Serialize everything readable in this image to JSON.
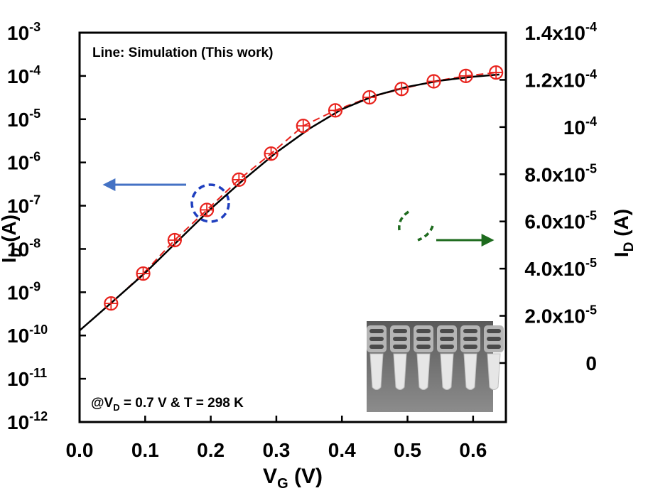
{
  "chart_data": {
    "type": "line",
    "title": "",
    "annotation_top": "Line: Simulation (This work)",
    "condition": {
      "prefix": "@V",
      "sub": "D",
      "suffix": " = 0.7 V & T = 298 K"
    },
    "xlabel": {
      "main": "V",
      "sub": "G",
      "unit": " (V)"
    },
    "ylabel_left": {
      "main": "I",
      "sub": "D",
      "unit": " (A)"
    },
    "ylabel_right": {
      "main": "I",
      "sub": "D",
      "unit": " (A)"
    },
    "xlim": [
      0.0,
      0.65
    ],
    "ylim_left_log10": [
      -12,
      -3
    ],
    "ylim_right": [
      -2.5e-05,
      0.00014
    ],
    "y_scale_left": "log",
    "y_scale_right": "linear",
    "grid": false,
    "x_ticks": [
      "0.0",
      "0.1",
      "0.2",
      "0.3",
      "0.4",
      "0.5",
      "0.6"
    ],
    "left_ticks": [
      {
        "base": "10",
        "exp": "-3"
      },
      {
        "base": "10",
        "exp": "-4"
      },
      {
        "base": "10",
        "exp": "-5"
      },
      {
        "base": "10",
        "exp": "-6"
      },
      {
        "base": "10",
        "exp": "-7"
      },
      {
        "base": "10",
        "exp": "-8"
      },
      {
        "base": "10",
        "exp": "-9"
      },
      {
        "base": "10",
        "exp": "-10"
      },
      {
        "base": "10",
        "exp": "-11"
      },
      {
        "base": "10",
        "exp": "-12"
      }
    ],
    "right_ticks": [
      {
        "text": "1.4x10",
        "exp": "-4"
      },
      {
        "text": "1.2x10",
        "exp": "-4"
      },
      {
        "text": "10",
        "exp": "-4"
      },
      {
        "text": "8.0x10",
        "exp": "-5"
      },
      {
        "text": "6.0x10",
        "exp": "-5"
      },
      {
        "text": "4.0x10",
        "exp": "-5"
      },
      {
        "text": "2.0x10",
        "exp": "-5"
      },
      {
        "text": "0",
        "exp": ""
      }
    ],
    "series": [
      {
        "role": "simulation",
        "axis": "left",
        "style": "solid",
        "color": "#000000",
        "x": [
          0.0,
          0.05,
          0.1,
          0.15,
          0.2,
          0.25,
          0.3,
          0.35,
          0.4,
          0.45,
          0.5,
          0.55,
          0.6,
          0.64
        ],
        "y": [
          1.3e-10,
          6e-10,
          2.8e-09,
          1.55e-08,
          8.5e-08,
          4e-07,
          1.7e-06,
          6e-06,
          1.7e-05,
          3.5e-05,
          5.6e-05,
          7.8e-05,
          9.6e-05,
          0.000108
        ]
      },
      {
        "role": "measurement",
        "axis": "left",
        "style": "dashed-markers",
        "color": "#e8221c",
        "marker": "circle-plus",
        "x": [
          0.048,
          0.097,
          0.145,
          0.194,
          0.243,
          0.292,
          0.341,
          0.39,
          0.442,
          0.491,
          0.54,
          0.589,
          0.635
        ],
        "y": [
          5.5e-10,
          2.7e-09,
          1.6e-08,
          8e-08,
          4e-07,
          1.6e-06,
          7e-06,
          1.6e-05,
          3.2e-05,
          5e-05,
          7.5e-05,
          0.0001,
          0.00012
        ]
      }
    ],
    "colors": {
      "axes": "#000000",
      "simulation": "#000000",
      "measurement": "#e8221c",
      "left_indicator": "#4472c4",
      "left_circle": "#1f3fbf",
      "right_indicator": "#1e6b1e"
    }
  },
  "inset": {
    "icon": "sem-fin-cross-section-image"
  }
}
